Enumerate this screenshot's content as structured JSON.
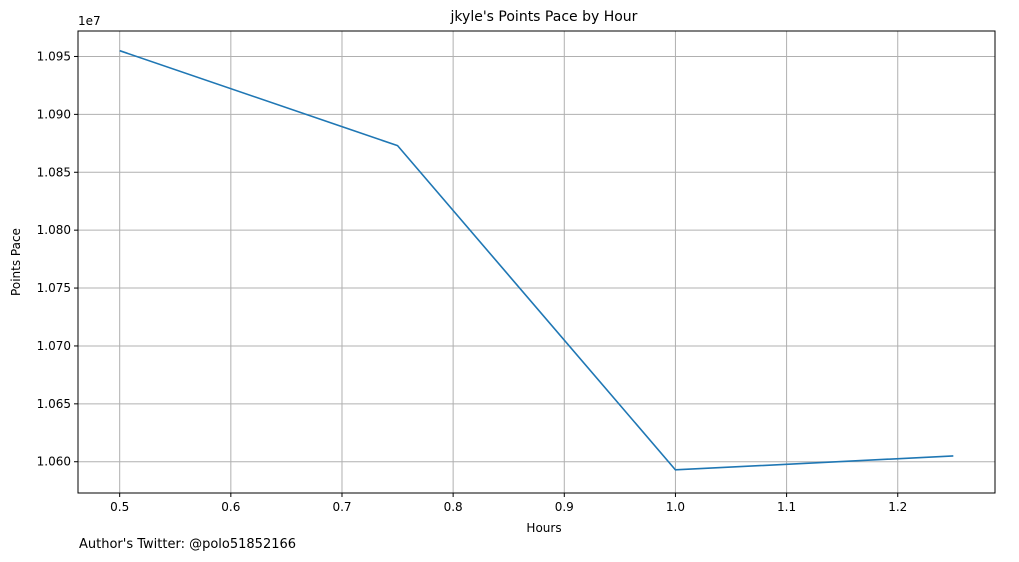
{
  "chart_data": {
    "type": "line",
    "title": "jkyle's Points Pace by Hour",
    "xlabel": "Hours",
    "ylabel": "Points Pace",
    "y_offset_label": "1e7",
    "grid": true,
    "xlim": [
      0.4625,
      1.2875
    ],
    "ylim": [
      10573000,
      10972000
    ],
    "x_ticks": [
      0.5,
      0.6,
      0.7,
      0.8,
      0.9,
      1.0,
      1.1,
      1.2
    ],
    "x_tick_labels": [
      "0.5",
      "0.6",
      "0.7",
      "0.8",
      "0.9",
      "1.0",
      "1.1",
      "1.2"
    ],
    "y_ticks": [
      10600000,
      10650000,
      10700000,
      10750000,
      10800000,
      10850000,
      10900000,
      10950000
    ],
    "y_tick_labels": [
      "1.060",
      "1.065",
      "1.070",
      "1.075",
      "1.080",
      "1.085",
      "1.090",
      "1.095"
    ],
    "series": [
      {
        "color": "#1f77b4",
        "x": [
          0.5,
          0.75,
          1.0,
          1.25
        ],
        "y": [
          10955000,
          10873000,
          10593000,
          10605000
        ]
      }
    ]
  },
  "caption": "Author's Twitter: @polo51852166"
}
